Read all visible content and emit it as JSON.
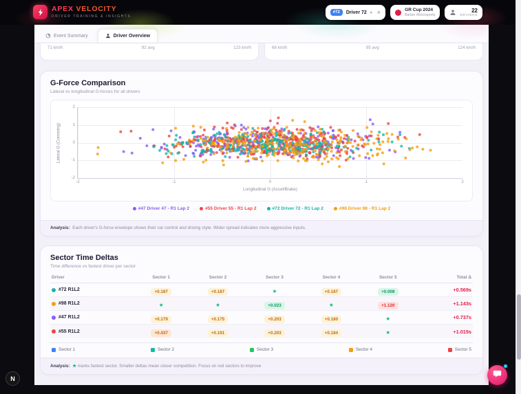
{
  "header": {
    "logo_title_1": "APEX",
    "logo_title_2": "VELOCITY",
    "logo_subtitle": "DRIVER TRAINING & INSIGHTS",
    "driver_select": {
      "badge": "#72",
      "label": "Driver 72",
      "chevron": "▾",
      "close": "×"
    },
    "event_badge": {
      "title": "GR Cup 2024",
      "subtitle": "Barber Motorsports"
    },
    "drivers_count": {
      "value": "22",
      "label": "DRIVERS"
    }
  },
  "tabs": {
    "event_summary": "Event Summary",
    "driver_overview": "Driver Overview"
  },
  "speed_cards": [
    {
      "min": "71 km/h",
      "avg": "92 avg",
      "max": "123 km/h"
    },
    {
      "min": "68 km/h",
      "avg": "95 avg",
      "max": "124 km/h"
    }
  ],
  "gforce": {
    "title": "G-Force Comparison",
    "subtitle": "Lateral vs longitudinal G-forces for all drivers",
    "analysis_label": "Analysis:",
    "analysis_text": "Each driver's G-force envelope shows their car control and driving style. Wider spread indicates more aggressive inputs."
  },
  "chart_data": {
    "type": "scatter",
    "title": "G-Force Comparison",
    "xlabel": "Longitudinal G (Accel/Brake)",
    "ylabel": "Lateral G (Cornering)",
    "xlim": [
      -2,
      2
    ],
    "ylim": [
      -2,
      2
    ],
    "xticks": [
      -2,
      -1,
      0,
      1,
      2
    ],
    "yticks": [
      -2,
      -1,
      0,
      1,
      2
    ],
    "grid": true,
    "legend_position": "bottom",
    "series": [
      {
        "name": "#47 Driver 47 - R1 Lap 2",
        "color": "#8b5cf6",
        "distribution": "gaussian",
        "point_count": 280,
        "center": [
          -0.1,
          0.0
        ],
        "spread": [
          0.5,
          0.42
        ],
        "seed": 11,
        "outliers": [
          [
            -1.35,
            0.25
          ]
        ]
      },
      {
        "name": "#55 Driver 55 - R1 Lap 2",
        "color": "#ef4444",
        "distribution": "gaussian",
        "point_count": 330,
        "center": [
          0.05,
          0.05
        ],
        "spread": [
          0.48,
          0.42
        ],
        "seed": 22,
        "outliers": []
      },
      {
        "name": "#72 Driver 72 - R1 Lap 2",
        "color": "#14b8a6",
        "distribution": "gaussian",
        "point_count": 240,
        "center": [
          0.0,
          -0.08
        ],
        "spread": [
          0.52,
          0.4
        ],
        "seed": 33,
        "outliers": [
          [
            1.35,
            0.45
          ]
        ]
      },
      {
        "name": "#98 Driver 98 - R1 Lap 2",
        "color": "#f59e0b",
        "distribution": "gaussian",
        "point_count": 260,
        "center": [
          0.12,
          -0.1
        ],
        "spread": [
          0.6,
          0.52
        ],
        "seed": 44,
        "outliers": [
          [
            0.72,
            -1.35
          ]
        ]
      }
    ]
  },
  "sector": {
    "title": "Sector Time Deltas",
    "subtitle": "Time difference vs fastest driver per sector",
    "columns": [
      "Driver",
      "Sector 1",
      "Sector 2",
      "Sector 3",
      "Sector 4",
      "Sector 5",
      "Total Δ"
    ],
    "fastest_marker": "★",
    "rows": [
      {
        "driver": "#72 R1L2",
        "color": "#14b8a6",
        "total": "+0.569s",
        "cells": [
          {
            "text": "+0.187",
            "style": "amber"
          },
          {
            "text": "+0.187",
            "style": "amber"
          },
          {
            "text": "★",
            "style": "fastest"
          },
          {
            "text": "+0.187",
            "style": "amber"
          },
          {
            "text": "+0.008",
            "style": "green"
          }
        ]
      },
      {
        "driver": "#98 R1L2",
        "color": "#f59e0b",
        "total": "+1.143s",
        "cells": [
          {
            "text": "★",
            "style": "fastest"
          },
          {
            "text": "★",
            "style": "fastest"
          },
          {
            "text": "+0.023",
            "style": "green"
          },
          {
            "text": "★",
            "style": "fastest"
          },
          {
            "text": "+1.120",
            "style": "red"
          }
        ]
      },
      {
        "driver": "#47 R1L2",
        "color": "#8b5cf6",
        "total": "+0.737s",
        "cells": [
          {
            "text": "+0.179",
            "style": "amber"
          },
          {
            "text": "+0.175",
            "style": "amber"
          },
          {
            "text": "+0.203",
            "style": "amber"
          },
          {
            "text": "+0.180",
            "style": "amber"
          },
          {
            "text": "★",
            "style": "fastest"
          }
        ]
      },
      {
        "driver": "#55 R1L2",
        "color": "#ef4444",
        "total": "+1.015s",
        "cells": [
          {
            "text": "+0.437",
            "style": "orange"
          },
          {
            "text": "+0.191",
            "style": "amber"
          },
          {
            "text": "+0.203",
            "style": "amber"
          },
          {
            "text": "+0.184",
            "style": "amber"
          },
          {
            "text": "★",
            "style": "fastest"
          }
        ]
      }
    ],
    "legend": [
      {
        "label": "Sector 1",
        "color": "#3b82f6"
      },
      {
        "label": "Sector 2",
        "color": "#14b8a6"
      },
      {
        "label": "Sector 3",
        "color": "#22c55e"
      },
      {
        "label": "Sector 4",
        "color": "#f59e0b"
      },
      {
        "label": "Sector 5",
        "color": "#ef4444"
      }
    ],
    "analysis_label": "Analysis:",
    "analysis_text": "marks fastest sector. Smaller deltas mean closer competition. Focus on red sectors to improve"
  },
  "floating": {
    "dev_badge": "N"
  },
  "colors": {
    "accent": "#e11d48",
    "driver_badge": "#3b82f6",
    "fastest": "#10b981",
    "total_delta": "#e11d48"
  }
}
